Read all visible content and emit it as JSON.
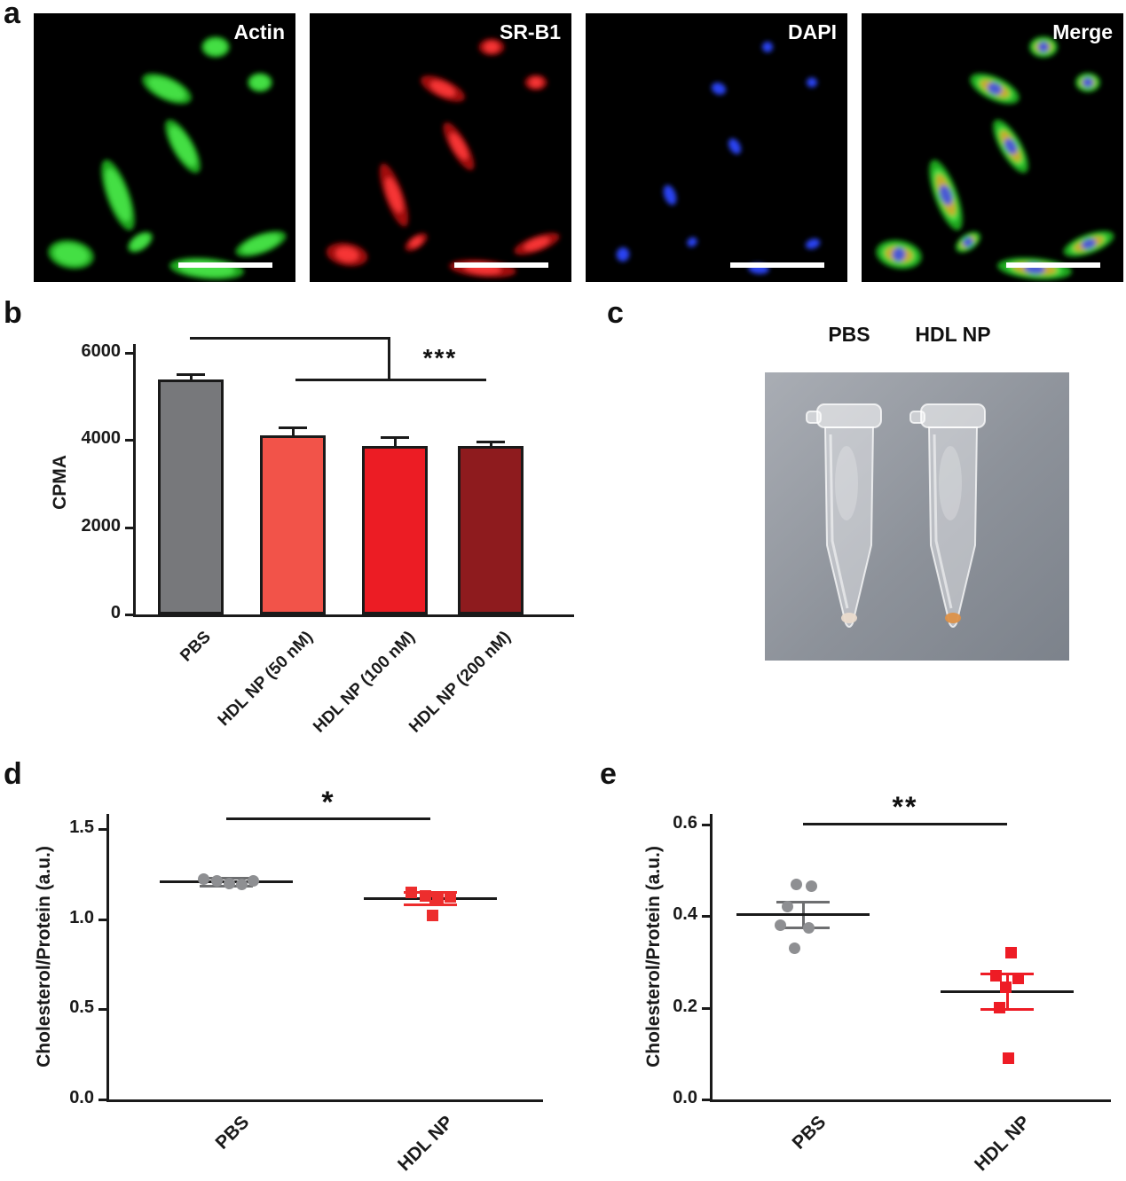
{
  "panels": {
    "a": "a",
    "b": "b",
    "c": "c",
    "d": "d",
    "e": "e"
  },
  "panel_a": {
    "images": [
      {
        "label": "Actin",
        "channel": "green"
      },
      {
        "label": "SR-B1",
        "channel": "red"
      },
      {
        "label": "DAPI",
        "channel": "blue"
      },
      {
        "label": "Merge",
        "channel": "merge"
      }
    ]
  },
  "panel_c": {
    "tube_labels": [
      "PBS",
      "HDL NP"
    ],
    "pellet_colors": {
      "PBS": "#e9dacc",
      "HDL NP": "#dd9148"
    }
  },
  "chart_data": [
    {
      "panel": "b",
      "type": "bar",
      "categories": [
        "PBS",
        "HDL NP (50 nM)",
        "HDL NP (100 nM)",
        "HDL NP (200 nM)"
      ],
      "values": [
        5400,
        4100,
        3870,
        3870
      ],
      "errors": [
        110,
        190,
        190,
        90
      ],
      "bar_colors": [
        "#77787b",
        "#f25349",
        "#ec1c24",
        "#8e1b1e"
      ],
      "ylabel": "CPMA",
      "ylim": [
        0,
        6000
      ],
      "yticks": [
        0,
        2000,
        4000,
        6000
      ],
      "ytick_labels": [
        "0",
        "2000",
        "4000",
        "6000"
      ],
      "significance": "***",
      "significance_note": "PBS vs HDL NP groups",
      "legend": "none",
      "grid": false
    },
    {
      "panel": "d",
      "type": "scatter",
      "ylabel": "Cholesterol/Protein (a.u.)",
      "ylim": [
        0,
        1.5
      ],
      "yticks": [
        0,
        0.5,
        1,
        1.5
      ],
      "ytick_labels": [
        "0.0",
        "0.5",
        "1.0",
        "1.5"
      ],
      "significance": "*",
      "grid": false,
      "groups": [
        {
          "label": "PBS",
          "marker": "circle",
          "color": "#8e8f92",
          "points": [
            {
              "dx": -26,
              "y": 1.22
            },
            {
              "dx": -11,
              "y": 1.21
            },
            {
              "dx": 3,
              "y": 1.2
            },
            {
              "dx": 17,
              "y": 1.195
            },
            {
              "dx": 30,
              "y": 1.21
            }
          ],
          "mean": 1.205,
          "sem_low": 1.185,
          "sem_high": 1.225
        },
        {
          "label": "HDL NP",
          "marker": "square",
          "color": "#ed2d2d",
          "points": [
            {
              "dx": -22,
              "y": 1.15
            },
            {
              "dx": -6,
              "y": 1.13
            },
            {
              "dx": 8,
              "y": 1.12
            },
            {
              "dx": 22,
              "y": 1.125
            },
            {
              "dx": 2,
              "y": 1.02
            }
          ],
          "mean": 1.115,
          "sem_low": 1.08,
          "sem_high": 1.15
        }
      ]
    },
    {
      "panel": "e",
      "type": "scatter",
      "ylabel": "Cholesterol/Protein (a.u.)",
      "ylim": [
        0,
        0.6
      ],
      "yticks": [
        0,
        0.2,
        0.4,
        0.6
      ],
      "ytick_labels": [
        "0.0",
        "0.2",
        "0.4",
        "0.6"
      ],
      "significance": "**",
      "grid": false,
      "groups": [
        {
          "label": "PBS",
          "marker": "circle",
          "color": "#8e8f92",
          "points": [
            {
              "dx": -8,
              "y": 0.47
            },
            {
              "dx": 9,
              "y": 0.465
            },
            {
              "dx": -18,
              "y": 0.42
            },
            {
              "dx": -26,
              "y": 0.38
            },
            {
              "dx": 6,
              "y": 0.375
            },
            {
              "dx": -10,
              "y": 0.33
            }
          ],
          "mean": 0.403,
          "sem_low": 0.375,
          "sem_high": 0.431
        },
        {
          "label": "HDL NP",
          "marker": "square",
          "color": "#ee1c25",
          "points": [
            {
              "dx": 4,
              "y": 0.32
            },
            {
              "dx": -13,
              "y": 0.27
            },
            {
              "dx": 12,
              "y": 0.265
            },
            {
              "dx": -2,
              "y": 0.245
            },
            {
              "dx": -9,
              "y": 0.2
            },
            {
              "dx": 1,
              "y": 0.09
            }
          ],
          "mean": 0.235,
          "sem_low": 0.196,
          "sem_high": 0.274
        }
      ]
    }
  ]
}
